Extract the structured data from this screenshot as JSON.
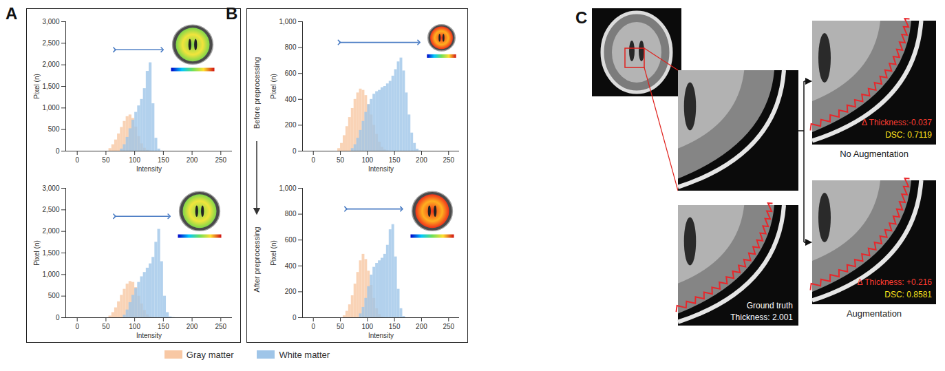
{
  "chart_data": [
    {
      "type": "histogram",
      "panel": "A",
      "xlabel": "Intensity",
      "ylabel": "Pixel (n)",
      "xlim": [
        -20,
        270
      ],
      "xticks": [
        0,
        50,
        100,
        150,
        200,
        250
      ],
      "ylim": [
        0,
        3000
      ],
      "yticks": [
        0,
        500,
        {
          "value": 1000,
          "label": "1,000"
        },
        {
          "value": 1500,
          "label": "1,500"
        },
        {
          "value": 2000,
          "label": "2,000"
        },
        {
          "value": 2500,
          "label": "2,500"
        },
        {
          "value": 3000,
          "label": "3,000"
        }
      ],
      "legend": "bottom",
      "series": [
        {
          "name": "Gray matter",
          "color": "#f8c8a4",
          "bins": [
            55,
            60,
            65,
            70,
            75,
            80,
            85,
            90,
            95,
            100,
            105,
            110,
            115,
            120,
            125,
            130
          ],
          "counts": [
            60,
            150,
            260,
            400,
            550,
            690,
            800,
            840,
            760,
            560,
            340,
            170,
            70,
            20,
            5
          ]
        },
        {
          "name": "White matter",
          "color": "#9fc5e8",
          "bins": [
            75,
            80,
            85,
            90,
            95,
            100,
            105,
            110,
            115,
            120,
            125,
            130,
            135,
            140,
            145,
            150
          ],
          "counts": [
            50,
            150,
            320,
            520,
            720,
            900,
            1050,
            1200,
            1450,
            1850,
            2050,
            1100,
            300,
            50,
            5
          ]
        }
      ],
      "annotations": [
        {
          "type": "double_arrow",
          "x": [
            65,
            148
          ],
          "y": 2350
        }
      ]
    },
    {
      "type": "histogram",
      "panel": "A",
      "xlabel": "Intensity",
      "ylabel": "Pixel (n)",
      "xlim": [
        -20,
        270
      ],
      "xticks": [
        0,
        50,
        100,
        150,
        200,
        250
      ],
      "ylim": [
        0,
        3000
      ],
      "yticks": [
        0,
        500,
        {
          "value": 1000,
          "label": "1,000"
        },
        {
          "value": 1500,
          "label": "1,500"
        },
        {
          "value": 2000,
          "label": "2,000"
        },
        {
          "value": 2500,
          "label": "2,500"
        },
        {
          "value": 3000,
          "label": "3,000"
        }
      ],
      "legend": "bottom",
      "series": [
        {
          "name": "Gray matter",
          "color": "#f8c8a4",
          "bins": [
            55,
            60,
            65,
            70,
            75,
            80,
            85,
            90,
            95,
            100,
            105,
            110,
            115,
            120,
            125,
            130,
            135
          ],
          "counts": [
            40,
            120,
            230,
            370,
            520,
            660,
            780,
            840,
            820,
            700,
            500,
            320,
            170,
            70,
            20,
            5
          ]
        },
        {
          "name": "White matter",
          "color": "#9fc5e8",
          "bins": [
            80,
            85,
            90,
            95,
            100,
            105,
            110,
            115,
            120,
            125,
            130,
            135,
            140,
            145,
            150,
            155,
            160,
            165,
            170
          ],
          "counts": [
            60,
            180,
            350,
            520,
            680,
            820,
            950,
            1050,
            1150,
            1250,
            1400,
            1750,
            2050,
            1300,
            500,
            120,
            20,
            5
          ]
        }
      ],
      "annotations": [
        {
          "type": "double_arrow",
          "x": [
            65,
            160
          ],
          "y": 2350
        }
      ]
    },
    {
      "type": "histogram",
      "panel": "B",
      "xlabel": "Intensity",
      "ylabel": "Pixel (n)",
      "xlim": [
        -20,
        270
      ],
      "xticks": [
        0,
        50,
        100,
        150,
        200,
        250
      ],
      "ylim": [
        0,
        1000
      ],
      "yticks": [
        0,
        200,
        400,
        600,
        800,
        {
          "value": 1000,
          "label": "1,000"
        }
      ],
      "legend": "bottom",
      "series": [
        {
          "name": "Gray matter",
          "color": "#f8c8a4",
          "bins": [
            45,
            50,
            55,
            60,
            65,
            70,
            75,
            80,
            85,
            90,
            95,
            100,
            105,
            110,
            115,
            120,
            125,
            130,
            135,
            140
          ],
          "counts": [
            20,
            60,
            120,
            190,
            260,
            330,
            400,
            450,
            480,
            470,
            430,
            360,
            280,
            200,
            130,
            70,
            30,
            10,
            3
          ]
        },
        {
          "name": "White matter",
          "color": "#9fc5e8",
          "bins": [
            70,
            75,
            80,
            85,
            90,
            95,
            100,
            105,
            110,
            115,
            120,
            125,
            130,
            135,
            140,
            145,
            150,
            155,
            160,
            165,
            170,
            175,
            180,
            185,
            190,
            195,
            200
          ],
          "counts": [
            20,
            50,
            100,
            160,
            230,
            300,
            360,
            400,
            440,
            460,
            470,
            490,
            500,
            520,
            540,
            580,
            630,
            690,
            720,
            620,
            450,
            280,
            140,
            60,
            15,
            3
          ]
        }
      ],
      "annotations": [
        {
          "type": "double_arrow",
          "x": [
            48,
            195
          ],
          "y": 840
        }
      ]
    },
    {
      "type": "histogram",
      "panel": "B",
      "xlabel": "Intensity",
      "ylabel": "Pixel (n)",
      "xlim": [
        -20,
        270
      ],
      "xticks": [
        0,
        50,
        100,
        150,
        200,
        250
      ],
      "ylim": [
        0,
        1000
      ],
      "yticks": [
        0,
        200,
        400,
        600,
        800,
        {
          "value": 1000,
          "label": "1,000"
        }
      ],
      "legend": "bottom",
      "series": [
        {
          "name": "Gray matter",
          "color": "#f8c8a4",
          "bins": [
            55,
            60,
            65,
            70,
            75,
            80,
            85,
            90,
            95,
            100,
            105,
            110,
            115,
            120,
            125,
            130
          ],
          "counts": [
            15,
            50,
            100,
            170,
            260,
            350,
            440,
            490,
            450,
            360,
            250,
            150,
            70,
            25,
            5
          ]
        },
        {
          "name": "White matter",
          "color": "#9fc5e8",
          "bins": [
            85,
            90,
            95,
            100,
            105,
            110,
            115,
            120,
            125,
            130,
            135,
            140,
            145,
            150,
            155,
            160,
            165,
            170
          ],
          "counts": [
            30,
            80,
            150,
            240,
            330,
            390,
            420,
            440,
            460,
            490,
            560,
            680,
            720,
            470,
            220,
            70,
            10
          ]
        }
      ],
      "annotations": [
        {
          "type": "double_arrow",
          "x": [
            60,
            163
          ],
          "y": 840
        }
      ]
    }
  ],
  "figure": {
    "row_labels": [
      "Before preprocessing",
      "After preprocessing"
    ]
  },
  "panel_c": {
    "label": "C",
    "ground_truth": {
      "title": "Ground truth",
      "thickness": "Thickness: 2.001"
    },
    "results": [
      {
        "name": "No Augmentation",
        "delta_thickness": "Δ Thickness:-0.037",
        "dsc": "DSC: 0.7119"
      },
      {
        "name": "Augmentation",
        "delta_thickness": "Δ Thickness: +0.216",
        "dsc": "DSC: 0.8581"
      }
    ]
  }
}
